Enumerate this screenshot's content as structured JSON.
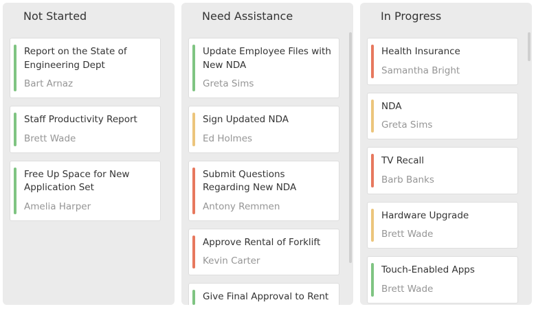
{
  "colors": {
    "green": "#7fc482",
    "yellow": "#ecc57c",
    "red": "#e7785e",
    "column_bg": "#ebebeb",
    "card_bg": "#ffffff",
    "assignee_text": "#959595"
  },
  "columns": [
    {
      "title": "Not Started",
      "cards": [
        {
          "title": "Report on the State of Engineering Dept",
          "assignee": "Bart Arnaz",
          "status_color": "green"
        },
        {
          "title": "Staff Productivity Report",
          "assignee": "Brett Wade",
          "status_color": "green"
        },
        {
          "title": "Free Up Space for New Application Set",
          "assignee": "Amelia Harper",
          "status_color": "green"
        }
      ]
    },
    {
      "title": "Need Assistance",
      "cards": [
        {
          "title": "Update Employee Files with New NDA",
          "assignee": "Greta Sims",
          "status_color": "green"
        },
        {
          "title": "Sign Updated NDA",
          "assignee": "Ed Holmes",
          "status_color": "yellow"
        },
        {
          "title": "Submit Questions Regarding New NDA",
          "assignee": "Antony Remmen",
          "status_color": "red"
        },
        {
          "title": "Approve Rental of Forklift",
          "assignee": "Kevin Carter",
          "status_color": "red"
        },
        {
          "title": "Give Final Approval to Rent",
          "assignee": "",
          "status_color": "green"
        }
      ]
    },
    {
      "title": "In Progress",
      "cards": [
        {
          "title": "Health Insurance",
          "assignee": "Samantha Bright",
          "status_color": "red"
        },
        {
          "title": "NDA",
          "assignee": "Greta Sims",
          "status_color": "yellow"
        },
        {
          "title": "TV Recall",
          "assignee": "Barb Banks",
          "status_color": "red"
        },
        {
          "title": "Hardware Upgrade",
          "assignee": "Brett Wade",
          "status_color": "yellow"
        },
        {
          "title": "Touch-Enabled Apps",
          "assignee": "Brett Wade",
          "status_color": "green"
        }
      ]
    }
  ]
}
